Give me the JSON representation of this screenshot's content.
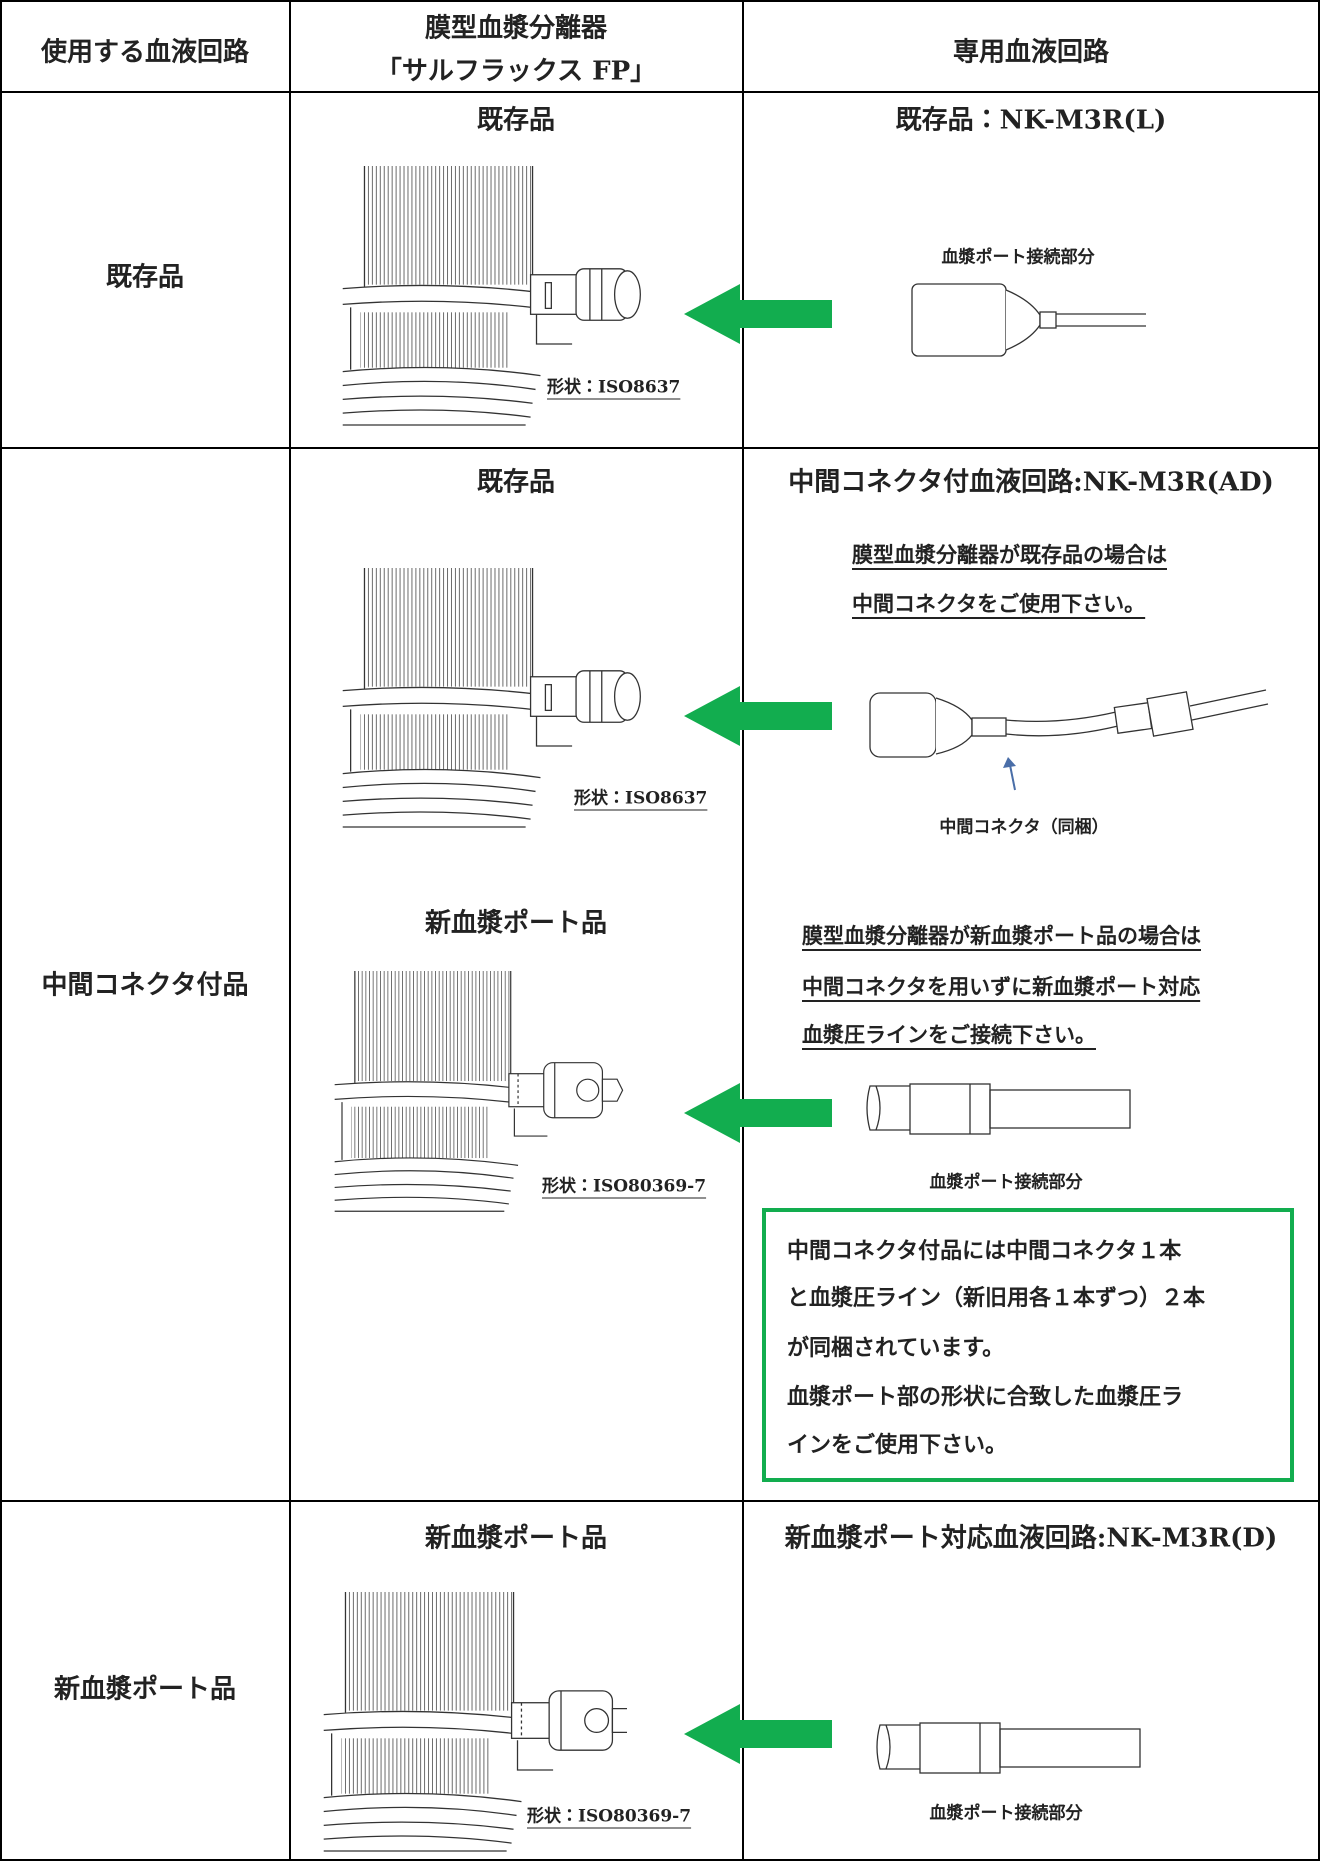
{
  "header": {
    "circuit_in_use": "使用する血液回路",
    "separator": [
      "膜型血漿分離器",
      "「サルフラックス FP」"
    ],
    "dedicated_circuit": "専用血液回路"
  },
  "rows": [
    {
      "label": "既存品",
      "separators": [
        {
          "title": "既存品",
          "shape": "形状：ISO8637"
        }
      ],
      "circuit": {
        "title": "既存品：NK-M3R(L)",
        "caption": "血漿ポート接続部分"
      }
    },
    {
      "label": "中間コネクタ付品",
      "separators": [
        {
          "title": "既存品",
          "shape": "形状：ISO8637"
        },
        {
          "title": "新血漿ポート品",
          "shape": "形状：ISO80369-7"
        }
      ],
      "circuit": {
        "title": "中間コネクタ付血液回路:NK-M3R(AD)",
        "note_existing": [
          "膜型血漿分離器が既存品の場合は",
          "中間コネクタをご使用下さい。"
        ],
        "caption_connector": "中間コネクタ（同梱）",
        "note_new": [
          "膜型血漿分離器が新血漿ポート品の場合は",
          "中間コネクタを用いずに新血漿ポート対応",
          "血漿圧ラインをご接続下さい。"
        ],
        "caption_port": "血漿ポート接続部分",
        "box": [
          "中間コネクタ付品には中間コネクタ１本",
          "と血漿圧ライン（新旧用各１本ずつ）２本",
          "が同梱されています。",
          "血漿ポート部の形状に合致した血漿圧ラ",
          "インをご使用下さい。"
        ]
      }
    },
    {
      "label": "新血漿ポート品",
      "separators": [
        {
          "title": "新血漿ポート品",
          "shape": "形状：ISO80369-7"
        }
      ],
      "circuit": {
        "title": "新血漿ポート対応血液回路:NK-M3R(D)",
        "caption": "血漿ポート接続部分"
      }
    }
  ]
}
